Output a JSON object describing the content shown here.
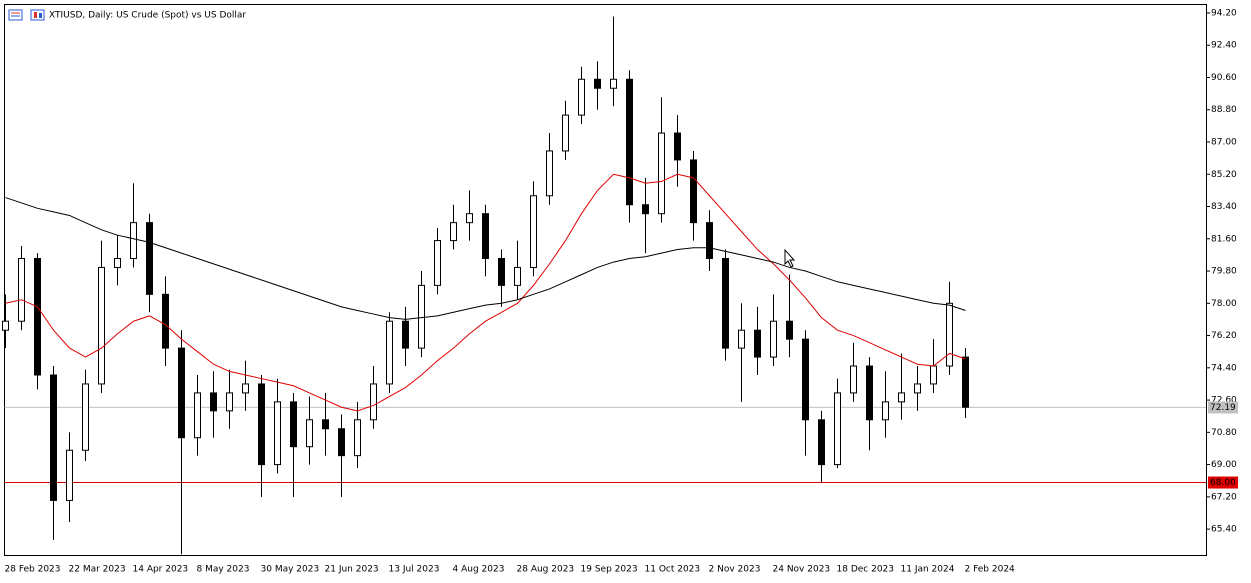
{
  "chart_data": {
    "type": "candlestick",
    "title": "XTIUSD, Daily:  US Crude (Spot) vs US Dollar",
    "categories": [
      "28 Feb 2023",
      null,
      null,
      null,
      "22 Mar 2023",
      null,
      null,
      null,
      "14 Apr 2023",
      null,
      null,
      null,
      "8 May 2023",
      null,
      null,
      null,
      "30 May 2023",
      null,
      null,
      null,
      "21 Jun 2023",
      null,
      null,
      null,
      "13 Jul 2023",
      null,
      null,
      null,
      "4 Aug 2023",
      null,
      null,
      null,
      "28 Aug 2023",
      null,
      null,
      null,
      "19 Sep 2023",
      null,
      null,
      null,
      "11 Oct 2023",
      null,
      null,
      null,
      "2 Nov 2023",
      null,
      null,
      null,
      "24 Nov 2023",
      null,
      null,
      null,
      "18 Dec 2023",
      null,
      null,
      null,
      "11 Jan 2024",
      null,
      null,
      null,
      "2 Feb 2024"
    ],
    "open": [
      76.5,
      77,
      80.5,
      74,
      67,
      69.8,
      73.5,
      80,
      80.5,
      82.5,
      78.5,
      75.5,
      70.5,
      73,
      72,
      73,
      73.5,
      69,
      72.5,
      70,
      71.5,
      71,
      69.5,
      71.5,
      73.5,
      77,
      75.5,
      79,
      81.5,
      82.5,
      83,
      80.5,
      79,
      80,
      84,
      86.5,
      88.5,
      90.5,
      90,
      90.5,
      83.5,
      83,
      87.5,
      86,
      82.5,
      80.5,
      75.5,
      76.5,
      75,
      77,
      76,
      71.5,
      69,
      73,
      74.5,
      71.5,
      72.5,
      73,
      73.5,
      74.5,
      75
    ],
    "high": [
      78.5,
      81.2,
      80.8,
      74.5,
      70.8,
      74.3,
      81.5,
      81.8,
      84.7,
      83,
      79.5,
      76.5,
      74,
      74.2,
      74.3,
      74.8,
      74,
      73.8,
      73,
      72.8,
      73,
      71.8,
      72.5,
      74.5,
      77.5,
      77.8,
      79.8,
      82.2,
      83.5,
      84.3,
      83.5,
      81,
      81.5,
      84.8,
      87.5,
      89.3,
      91.2,
      91.5,
      94,
      91,
      85,
      89.5,
      88.5,
      86.5,
      83.2,
      81,
      78,
      77.8,
      78.5,
      79.6,
      76.5,
      72,
      73.8,
      75.8,
      75,
      74.2,
      75.2,
      74.5,
      76,
      79.2,
      75.5
    ],
    "low": [
      75.5,
      76.5,
      73.2,
      64.8,
      65.8,
      69.2,
      73,
      79,
      80,
      77.5,
      74.5,
      64,
      69.5,
      70.5,
      71,
      72,
      67.2,
      68.5,
      67.2,
      69,
      69.5,
      67.2,
      68.8,
      71,
      73,
      74.5,
      75,
      78.5,
      81,
      81.5,
      79.5,
      77.8,
      78.2,
      79.5,
      83.5,
      86,
      88,
      88.8,
      89,
      82.5,
      80.8,
      82.5,
      84.5,
      81.5,
      79.8,
      74.8,
      72.5,
      74,
      74.5,
      75,
      69.5,
      68,
      68.8,
      72.5,
      69.8,
      70.5,
      71.5,
      72,
      73,
      74,
      71.6
    ],
    "close": [
      77,
      80.5,
      74,
      67,
      69.8,
      73.5,
      80,
      80.5,
      82.5,
      78.5,
      75.5,
      70.5,
      73,
      72,
      73,
      73.5,
      69,
      72.5,
      70,
      71.5,
      71,
      69.5,
      71.5,
      73.5,
      77,
      75.5,
      79,
      81.5,
      82.5,
      83,
      80.5,
      79,
      80,
      84,
      86.5,
      88.5,
      90.5,
      90,
      90.5,
      83.5,
      83,
      87.5,
      86,
      82.5,
      80.5,
      75.5,
      76.5,
      75,
      77,
      76,
      71.5,
      69,
      73,
      74.5,
      71.5,
      72.5,
      73,
      73.5,
      74.5,
      78,
      72.2
    ],
    "series": [
      {
        "color": "#e00000",
        "values": [
          78,
          78.2,
          77.8,
          76.5,
          75.5,
          75,
          75.5,
          76.3,
          77,
          77.3,
          76.8,
          76,
          75.3,
          74.6,
          74.2,
          74,
          73.8,
          73.6,
          73.4,
          73,
          72.6,
          72.2,
          72,
          72.3,
          72.8,
          73.3,
          74,
          74.8,
          75.5,
          76.3,
          77,
          77.5,
          78,
          79,
          80.2,
          81.5,
          83,
          84.3,
          85.2,
          85,
          84.7,
          84.8,
          85.2,
          85,
          84,
          83,
          82,
          81,
          80.2,
          79.3,
          78.3,
          77.2,
          76.5,
          76.2,
          75.8,
          75.4,
          75,
          74.6,
          74.5,
          75.2,
          74.9
        ]
      },
      {
        "color": "#000000",
        "values": [
          83.9,
          83.6,
          83.3,
          83.1,
          82.9,
          82.5,
          82.1,
          81.8,
          81.6,
          81.4,
          81.1,
          80.8,
          80.5,
          80.2,
          79.9,
          79.6,
          79.3,
          79,
          78.7,
          78.4,
          78.1,
          77.8,
          77.6,
          77.4,
          77.2,
          77.1,
          77.2,
          77.3,
          77.5,
          77.7,
          77.9,
          78,
          78.2,
          78.5,
          78.8,
          79.2,
          79.6,
          80,
          80.3,
          80.5,
          80.6,
          80.8,
          81,
          81.1,
          81.1,
          80.9,
          80.7,
          80.5,
          80.3,
          80,
          79.8,
          79.5,
          79.2,
          79,
          78.8,
          78.6,
          78.4,
          78.2,
          78,
          77.9,
          77.6
        ]
      }
    ],
    "levels": [
      {
        "value": 68,
        "label": "68.00",
        "color": "#e00000"
      },
      {
        "value": 72.19,
        "label": "72.19",
        "color": "#c0c0c0"
      }
    ],
    "ylim": [
      63.9,
      94.7
    ],
    "yticks": [
      {
        "value": 65.4,
        "label": "65.40"
      },
      {
        "value": 67.2,
        "label": "67.20"
      },
      {
        "value": 69,
        "label": "69.00"
      },
      {
        "value": 70.8,
        "label": "70.80"
      },
      {
        "value": 72.6,
        "label": "72.60"
      },
      {
        "value": 74.4,
        "label": "74.40"
      },
      {
        "value": 76.2,
        "label": "76.20"
      },
      {
        "value": 78,
        "label": "78.00"
      },
      {
        "value": 79.8,
        "label": "79.80"
      },
      {
        "value": 81.6,
        "label": "81.60"
      },
      {
        "value": 83.4,
        "label": "83.40"
      },
      {
        "value": 85.2,
        "label": "85.20"
      },
      {
        "value": 87,
        "label": "87.00"
      },
      {
        "value": 88.8,
        "label": "88.80"
      },
      {
        "value": 90.6,
        "label": "90.60"
      },
      {
        "value": 92.4,
        "label": "92.40"
      },
      {
        "value": 94.2,
        "label": "94.20"
      }
    ]
  }
}
